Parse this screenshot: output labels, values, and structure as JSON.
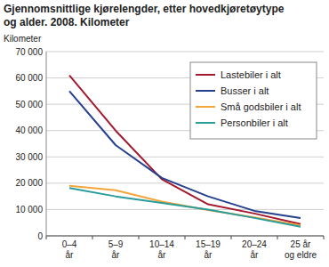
{
  "chart_data": {
    "type": "line",
    "title": "Gjennomsnittlige kjørelengder, etter hovedkjøretøytype\nog alder. 2008. Kilometer",
    "y_label": "Kilometer",
    "categories": [
      "0–4\når",
      "5–9\når",
      "10–14\når",
      "15–19\når",
      "20–24\når",
      "25 år\nog eldre"
    ],
    "series": [
      {
        "name": "Lastebiler i alt",
        "color": "#a3192e",
        "values": [
          61000,
          40000,
          21500,
          12000,
          8500,
          4500
        ]
      },
      {
        "name": "Busser i alt",
        "color": "#25408f",
        "values": [
          55000,
          34500,
          22000,
          15000,
          9500,
          6800
        ]
      },
      {
        "name": "Små godsbiler i alt",
        "color": "#f4a53a",
        "values": [
          19000,
          17300,
          13000,
          9800,
          7000,
          4000
        ]
      },
      {
        "name": "Personbiler i alt",
        "color": "#2a9c9a",
        "values": [
          18200,
          15000,
          12500,
          10000,
          6800,
          3500
        ]
      }
    ],
    "ylim": [
      0,
      70000
    ],
    "yticks": [
      0,
      {
        "value": 10000,
        "label": "10 000"
      },
      {
        "value": 20000,
        "label": "20 000"
      },
      {
        "value": 30000,
        "label": "30 000"
      },
      {
        "value": 40000,
        "label": "40 000"
      },
      {
        "value": 50000,
        "label": "50 000"
      },
      {
        "value": 60000,
        "label": "60 000"
      },
      {
        "value": 70000,
        "label": "70 000"
      }
    ],
    "grid": true,
    "legend": "top-right"
  }
}
